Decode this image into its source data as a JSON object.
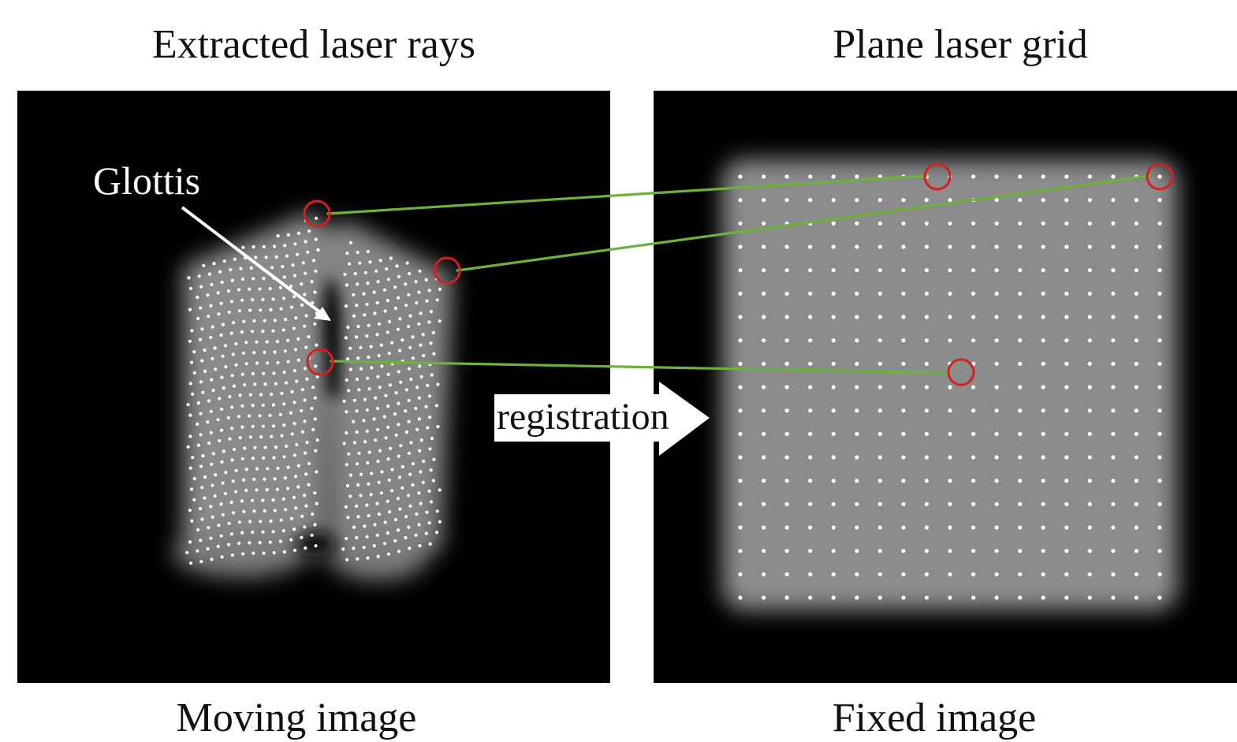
{
  "titles": {
    "left": "Extracted laser rays",
    "right": "Plane laser grid"
  },
  "captions": {
    "left": "Moving image",
    "right": "Fixed image"
  },
  "annotations": {
    "glottis": "Glottis",
    "arrow": "registration"
  },
  "colors": {
    "panel_background": "#000000",
    "tissue": "#8a8a8a",
    "laser_dot": "#ffffff",
    "highlight_circle": "#d42020",
    "correspondence_line": "#6fb23a",
    "arrow_fill": "#ffffff"
  },
  "correspondences": 3
}
